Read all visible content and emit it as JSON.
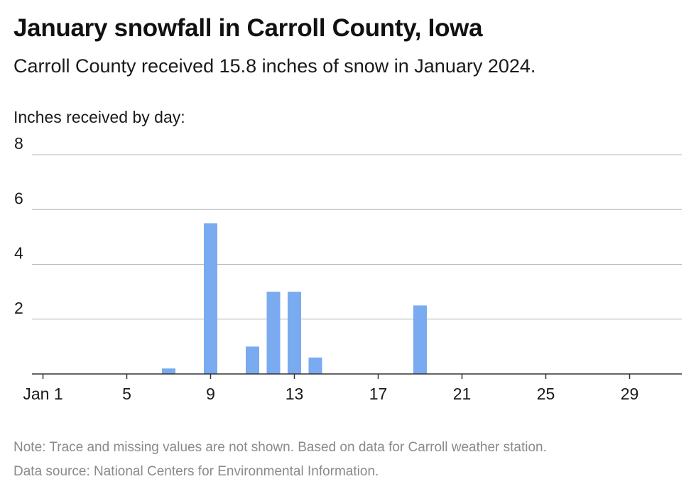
{
  "header": {
    "title": "January snowfall in Carroll County, Iowa",
    "subtitle": "Carroll County received 15.8 inches of snow in January 2024.",
    "ylabel": "Inches received by day:"
  },
  "footer": {
    "note": "Note: Trace and missing values are not shown. Based on data for Carroll weather station.",
    "source": "Data source: National Centers for Environmental Information."
  },
  "chart_data": {
    "type": "bar",
    "title": "January snowfall in Carroll County, Iowa",
    "subtitle": "Carroll County received 15.8 inches of snow in January 2024.",
    "ylabel": "Inches received by day:",
    "xlabel": "",
    "xlim": [
      1,
      31
    ],
    "ylim": [
      0,
      8
    ],
    "yticks": [
      2,
      4,
      6,
      8
    ],
    "xticks": [
      {
        "day": 1,
        "label": "Jan 1"
      },
      {
        "day": 5,
        "label": "5"
      },
      {
        "day": 9,
        "label": "9"
      },
      {
        "day": 13,
        "label": "13"
      },
      {
        "day": 17,
        "label": "17"
      },
      {
        "day": 21,
        "label": "21"
      },
      {
        "day": 25,
        "label": "25"
      },
      {
        "day": 29,
        "label": "29"
      }
    ],
    "grid": true,
    "bar_color": "#7aaaf0",
    "bars": [
      {
        "day": 7,
        "value": 0.2
      },
      {
        "day": 9,
        "value": 5.5
      },
      {
        "day": 11,
        "value": 1.0
      },
      {
        "day": 12,
        "value": 3.0
      },
      {
        "day": 13,
        "value": 3.0
      },
      {
        "day": 14,
        "value": 0.6
      },
      {
        "day": 19,
        "value": 2.5
      }
    ]
  }
}
